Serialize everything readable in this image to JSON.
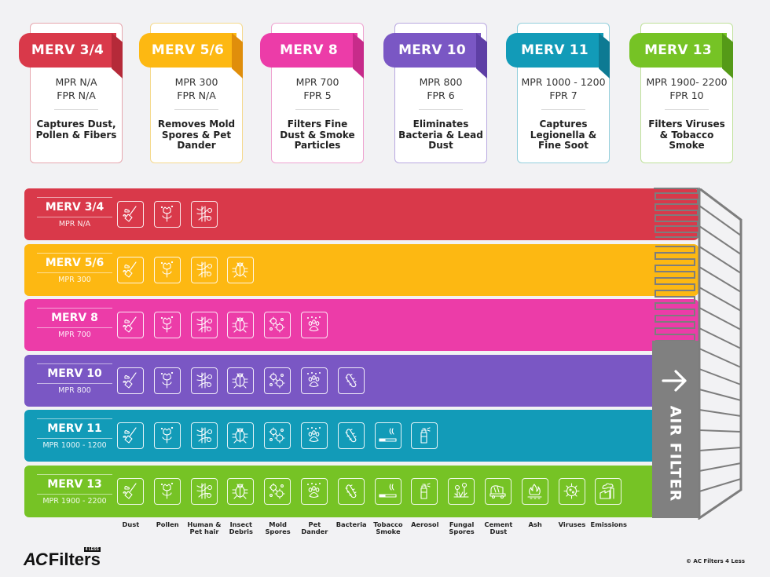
{
  "colors": {
    "merv34": "#D9394A",
    "merv56": "#FDB812",
    "merv8": "#EC3CA8",
    "merv10": "#7A57C4",
    "merv11": "#129BB8",
    "merv13": "#76C325",
    "filter_grey": "#808080",
    "background": "#F2F2F4"
  },
  "cards": [
    {
      "title": "MERV 3/4",
      "mpr": "MPR N/A",
      "fpr": "FPR N/A",
      "desc": "Captures Dust, Pollen & Fibers"
    },
    {
      "title": "MERV 5/6",
      "mpr": "MPR 300",
      "fpr": "FPR N/A",
      "desc": "Removes Mold Spores & Pet Dander"
    },
    {
      "title": "MERV 8",
      "mpr": "MPR 700",
      "fpr": "FPR 5",
      "desc": "Filters Fine Dust & Smoke Particles"
    },
    {
      "title": "MERV 10",
      "mpr": "MPR 800",
      "fpr": "FPR 6",
      "desc": "Eliminates Bacteria & Lead Dust"
    },
    {
      "title": "MERV 11",
      "mpr": "MPR 1000 - 1200",
      "fpr": "FPR 7",
      "desc": "Captures Legionella & Fine Soot"
    },
    {
      "title": "MERV 13",
      "mpr": "MPR 1900- 2200",
      "fpr": "FPR 10",
      "desc": "Filters Viruses & Tobacco Smoke"
    }
  ],
  "bars": [
    {
      "name": "MERV 3/4",
      "mpr": "MPR N/A",
      "icon_count": 3
    },
    {
      "name": "MERV 5/6",
      "mpr": "MPR 300",
      "icon_count": 4
    },
    {
      "name": "MERV 8",
      "mpr": "MPR 700",
      "icon_count": 6
    },
    {
      "name": "MERV 10",
      "mpr": "MPR 800",
      "icon_count": 7
    },
    {
      "name": "MERV 11",
      "mpr": "MPR 1000 - 1200",
      "icon_count": 9
    },
    {
      "name": "MERV 13",
      "mpr": "MPR 1900 - 2200",
      "icon_count": 14
    }
  ],
  "particles": [
    {
      "label": "Dust",
      "icon": "dust-broom-icon"
    },
    {
      "label": "Pollen",
      "icon": "pollen-flower-icon"
    },
    {
      "label": "Human & Pet hair",
      "icon": "hair-icon"
    },
    {
      "label": "Insect Debris",
      "icon": "insect-bug-icon"
    },
    {
      "label": "Mold Spores",
      "icon": "mold-spores-icon"
    },
    {
      "label": "Pet Dander",
      "icon": "paw-icon"
    },
    {
      "label": "Bacteria",
      "icon": "bacteria-icon"
    },
    {
      "label": "Tobacco Smoke",
      "icon": "cigarette-icon"
    },
    {
      "label": "Aerosol",
      "icon": "aerosol-spray-icon"
    },
    {
      "label": "Fungal Spores",
      "icon": "fungal-spores-icon"
    },
    {
      "label": "Cement Dust",
      "icon": "cement-mixer-icon"
    },
    {
      "label": "Ash",
      "icon": "fire-ash-icon"
    },
    {
      "label": "Viruses",
      "icon": "virus-icon"
    },
    {
      "label": "Emissions",
      "icon": "emissions-factory-icon"
    }
  ],
  "filter": {
    "label": "AIR FILTER",
    "arrow": "→"
  },
  "footer": {
    "logo_ac": "AC",
    "logo_filters": "Filters",
    "logo_badge": "4 LESS",
    "copyright": "© AC Filters 4 Less"
  }
}
